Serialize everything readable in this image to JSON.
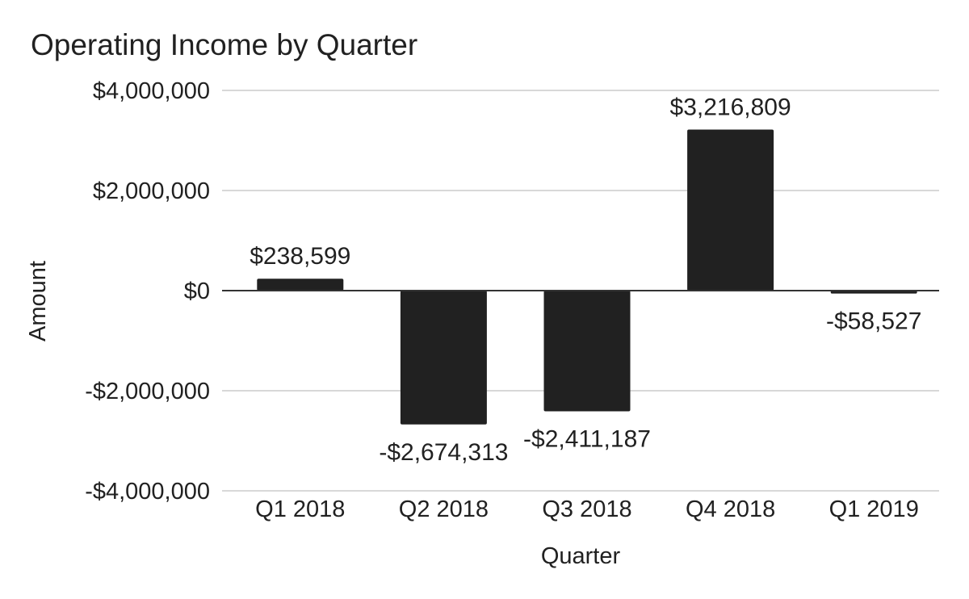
{
  "chart_data": {
    "type": "bar",
    "title": "Operating Income by Quarter",
    "xlabel": "Quarter",
    "ylabel": "Amount",
    "categories": [
      "Q1 2018",
      "Q2 2018",
      "Q3 2018",
      "Q4 2018",
      "Q1 2019"
    ],
    "values": [
      238599,
      -2674313,
      -2411187,
      3216809,
      -58527
    ],
    "data_labels": [
      "$238,599",
      "-$2,674,313",
      "-$2,411,187",
      "$3,216,809",
      "-$58,527"
    ],
    "ylim": [
      -4000000,
      4000000
    ],
    "yticks": [
      4000000,
      2000000,
      0,
      -2000000,
      -4000000
    ],
    "ytick_labels": [
      "$4,000,000",
      "$2,000,000",
      "$0",
      "-$2,000,000",
      "-$4,000,000"
    ],
    "grid": true,
    "legend": "none",
    "bar_color": "#212121",
    "gridline_color": "#cccccc"
  }
}
